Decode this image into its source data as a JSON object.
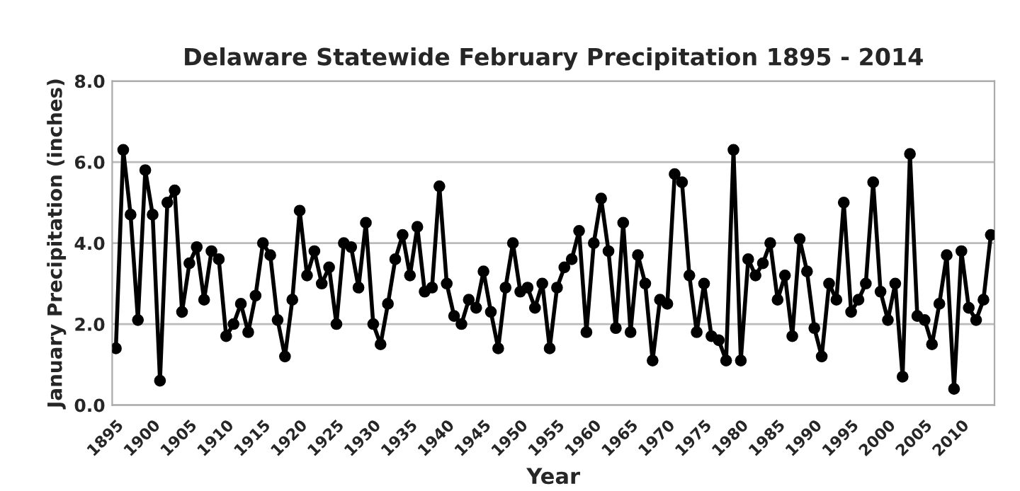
{
  "chart_data": {
    "type": "line",
    "title": "Delaware Statewide February Precipitation 1895 - 2014",
    "xlabel": "Year",
    "ylabel": "January Precipitation (inches)",
    "categories": [
      "1895",
      null,
      null,
      null,
      null,
      "1900",
      null,
      null,
      null,
      null,
      "1905",
      null,
      null,
      null,
      null,
      "1910",
      null,
      null,
      null,
      null,
      "1915",
      null,
      null,
      null,
      null,
      "1920",
      null,
      null,
      null,
      null,
      "1925",
      null,
      null,
      null,
      null,
      "1930",
      null,
      null,
      null,
      null,
      "1935",
      null,
      null,
      null,
      null,
      "1940",
      null,
      null,
      null,
      null,
      "1945",
      null,
      null,
      null,
      null,
      "1950",
      null,
      null,
      null,
      null,
      "1955",
      null,
      null,
      null,
      null,
      "1960",
      null,
      null,
      null,
      null,
      "1965",
      null,
      null,
      null,
      null,
      "1970",
      null,
      null,
      null,
      null,
      "1975",
      null,
      null,
      null,
      null,
      "1980",
      null,
      null,
      null,
      null,
      "1985",
      null,
      null,
      null,
      null,
      "1990",
      null,
      null,
      null,
      null,
      "1995",
      null,
      null,
      null,
      null,
      "2000",
      null,
      null,
      null,
      null,
      "2005",
      null,
      null,
      null,
      null,
      "2010",
      null,
      null,
      null,
      null
    ],
    "series": [
      {
        "color": "#000000",
        "values": [
          1.4,
          6.3,
          4.7,
          2.1,
          5.8,
          4.7,
          0.6,
          5.0,
          5.3,
          2.3,
          3.5,
          3.9,
          2.6,
          3.8,
          3.6,
          1.7,
          2.0,
          2.5,
          1.8,
          2.7,
          4.0,
          3.7,
          2.1,
          1.2,
          2.6,
          4.8,
          3.2,
          3.8,
          3.0,
          3.4,
          2.0,
          4.0,
          3.9,
          2.9,
          4.5,
          2.0,
          1.5,
          2.5,
          3.6,
          4.2,
          3.2,
          4.4,
          2.8,
          2.9,
          5.4,
          3.0,
          2.2,
          2.0,
          2.6,
          2.4,
          3.3,
          2.3,
          1.4,
          2.9,
          4.0,
          2.8,
          2.9,
          2.4,
          3.0,
          1.4,
          2.9,
          3.4,
          3.6,
          4.3,
          1.8,
          4.0,
          5.1,
          3.8,
          1.9,
          4.5,
          1.8,
          3.7,
          3.0,
          1.1,
          2.6,
          2.5,
          5.7,
          5.5,
          3.2,
          1.8,
          3.0,
          1.7,
          1.6,
          1.1,
          6.3,
          1.1,
          3.6,
          3.2,
          3.5,
          4.0,
          2.6,
          3.2,
          1.7,
          4.1,
          3.3,
          1.9,
          1.2,
          3.0,
          2.6,
          5.0,
          2.3,
          2.6,
          3.0,
          5.5,
          2.8,
          2.1,
          3.0,
          0.7,
          6.2,
          2.2,
          2.1,
          1.5,
          2.5,
          3.7,
          0.4,
          3.8,
          2.4,
          2.1,
          2.6,
          4.2
        ]
      }
    ],
    "ylim": [
      0,
      8
    ],
    "yticks": [
      {
        "value": 0,
        "label": "0.0"
      },
      {
        "value": 2,
        "label": "2.0"
      },
      {
        "value": 4,
        "label": "4.0"
      },
      {
        "value": 6,
        "label": "6.0"
      },
      {
        "value": 8,
        "label": "8.0"
      }
    ],
    "grid": "y",
    "marker": "circle",
    "line_style": "solid"
  }
}
